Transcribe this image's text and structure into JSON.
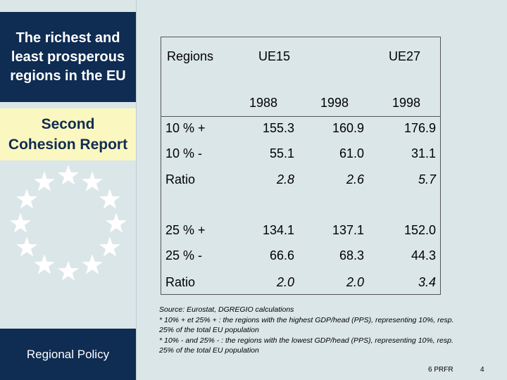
{
  "sidebar": {
    "title": "The richest and\nleast prosperous\nregions in the EU",
    "subtitle": "Second\nCohesion Report",
    "policy_label": "Regional Policy",
    "colors": {
      "navy": "#0f2c52",
      "cream": "#fbf7c0",
      "background": "#dbe6e9"
    }
  },
  "table": {
    "headers": {
      "regions": "Regions",
      "ue15": "UE15",
      "ue27": "UE27",
      "year_1988": "1988",
      "year_1998_ue15": "1998",
      "year_1998_ue27": "1998"
    },
    "rows": [
      {
        "label": "10 % +",
        "v1": "155.3",
        "v2": "160.9",
        "v3": "176.9"
      },
      {
        "label": "10 % -",
        "v1": "55.1",
        "v2": "61.0",
        "v3": "31.1"
      },
      {
        "label": "Ratio",
        "v1": "2.8",
        "v2": "2.6",
        "v3": "5.7"
      },
      {
        "label": "25 % +",
        "v1": "134.1",
        "v2": "137.1",
        "v3": "152.0"
      },
      {
        "label": "25 % -",
        "v1": "66.6",
        "v2": "68.3",
        "v3": "44.3"
      },
      {
        "label": "Ratio",
        "v1": "2.0",
        "v2": "2.0",
        "v3": "3.4"
      }
    ]
  },
  "notes": {
    "source": "Source: Eurostat, DGREGIO calculations",
    "note_plus": "* 10% + et 25% + : the regions with the highest GDP/head (PPS), representing 10%, resp. 25% of the total EU population",
    "note_minus": "* 10% - and 25% - : the regions with the lowest GDP/head (PPS), representing 10%, resp. 25% of the total EU population"
  },
  "footer": {
    "code": "6 PRFR",
    "page": "4"
  }
}
